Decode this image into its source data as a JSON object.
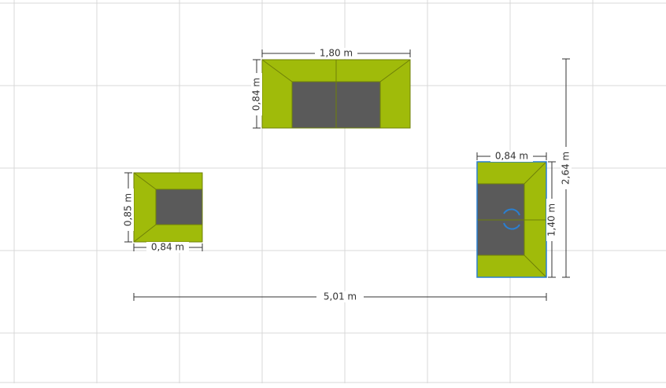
{
  "dimensions": {
    "sofa_width": "1,80 m",
    "sofa_depth": "0,84 m",
    "left_chair_depth": "0,85 m",
    "left_chair_width": "0,84 m",
    "right_chair_width": "0,84 m",
    "right_chair_length": "1,40 m",
    "group_depth": "2,64 m",
    "group_width": "5,01 m"
  }
}
